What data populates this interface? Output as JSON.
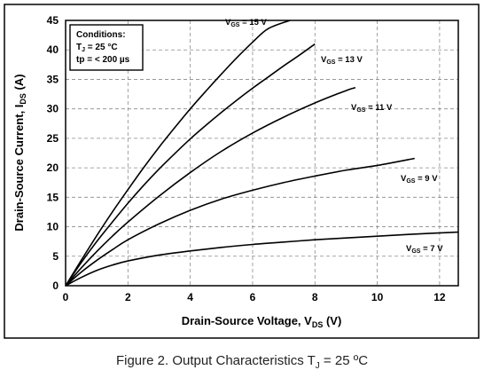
{
  "chart_data": {
    "type": "line",
    "xlabel": "Drain-Source Voltage, V",
    "xlabel_sub": "DS",
    "xlabel_unit": " (V)",
    "ylabel": "Drain-Source Current, I",
    "ylabel_sub": "DS",
    "ylabel_unit": " (A)",
    "xlim": [
      0,
      12.6
    ],
    "ylim": [
      0,
      45
    ],
    "xticks": [
      0,
      2,
      4,
      6,
      8,
      10,
      12
    ],
    "yticks": [
      0,
      5,
      10,
      15,
      20,
      25,
      30,
      35,
      40,
      45
    ],
    "grid": true,
    "conditions": {
      "title": "Conditions:",
      "line1_prefix": "T",
      "line1_sub": "J",
      "line1_rest": " = 25 °C",
      "line2": "tp = < 200 µs"
    },
    "series": [
      {
        "name_main": "V",
        "name_sub": "GS",
        "name_rest": " = 15 V",
        "x": [
          0,
          0.5,
          1,
          1.5,
          2,
          2.5,
          3,
          3.5,
          4,
          4.5,
          5,
          5.5,
          6,
          6.5,
          7.2
        ],
        "y": [
          0,
          4.3,
          8.5,
          12.5,
          16.3,
          20,
          23.5,
          26.8,
          30,
          33,
          35.9,
          38.7,
          41.3,
          43.6,
          45
        ]
      },
      {
        "name_main": "V",
        "name_sub": "GS",
        "name_rest": " = 13 V",
        "x": [
          0,
          0.5,
          1,
          1.5,
          2,
          2.5,
          3,
          3.5,
          4,
          4.5,
          5,
          5.5,
          6,
          6.5,
          7,
          7.5,
          8
        ],
        "y": [
          0,
          3.9,
          7.5,
          10.8,
          14,
          17,
          19.8,
          22.4,
          24.9,
          27.2,
          29.4,
          31.5,
          33.5,
          35.4,
          37.3,
          39.1,
          41
        ]
      },
      {
        "name_main": "V",
        "name_sub": "GS",
        "name_rest": " = 11 V",
        "x": [
          0,
          0.5,
          1,
          1.5,
          2,
          3,
          4,
          5,
          6,
          7,
          8,
          9,
          9.3
        ],
        "y": [
          0,
          3,
          5.8,
          8.4,
          10.8,
          15.2,
          19.2,
          22.8,
          25.9,
          28.6,
          31,
          33.1,
          33.6
        ]
      },
      {
        "name_main": "V",
        "name_sub": "GS",
        "name_rest": " = 9 V",
        "x": [
          0,
          0.5,
          1,
          1.5,
          2,
          3,
          4,
          5,
          6,
          7,
          8,
          9,
          10,
          11.2
        ],
        "y": [
          0,
          2.3,
          4.3,
          6.1,
          7.8,
          10.5,
          12.8,
          14.7,
          16.2,
          17.5,
          18.6,
          19.6,
          20.4,
          21.6
        ]
      },
      {
        "name_main": "V",
        "name_sub": "GS",
        "name_rest": " = 7 V",
        "x": [
          0,
          0.5,
          1,
          1.5,
          2,
          3,
          4,
          5,
          6,
          7,
          8,
          9,
          10,
          11,
          12.6
        ],
        "y": [
          0,
          1.4,
          2.6,
          3.5,
          4.2,
          5.2,
          5.9,
          6.5,
          7,
          7.4,
          7.8,
          8.1,
          8.4,
          8.7,
          9.1
        ]
      }
    ]
  },
  "caption": {
    "prefix": "Figure 2. Output Characteristics T",
    "sub": "J",
    "rest": " = 25 ºC"
  }
}
